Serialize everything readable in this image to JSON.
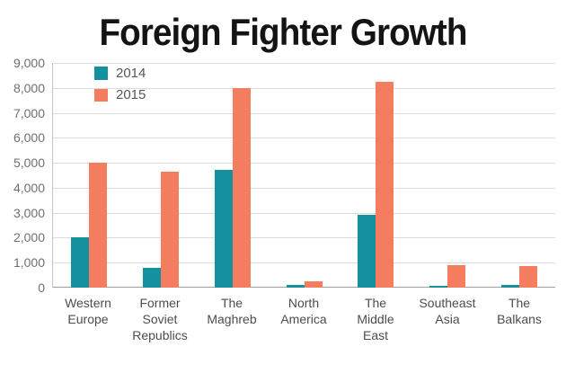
{
  "chart_data": {
    "type": "bar",
    "title": "Foreign Fighter Growth",
    "categories": [
      "Western Europe",
      "Former Soviet Republics",
      "The Maghreb",
      "North America",
      "The Middle East",
      "Southeast Asia",
      "The Balkans"
    ],
    "series": [
      {
        "name": "2014",
        "color": "#14909f",
        "values": [
          2000,
          800,
          4700,
          100,
          2900,
          50,
          100
        ]
      },
      {
        "name": "2015",
        "color": "#f47c5f",
        "values": [
          5000,
          4650,
          8000,
          250,
          8250,
          900,
          875
        ]
      }
    ],
    "xlabel": "",
    "ylabel": "",
    "ylim": [
      0,
      9000
    ],
    "yticks": [
      "9,000",
      "8,000",
      "7,000",
      "6,000",
      "5,000",
      "4,000",
      "3,000",
      "2,000",
      "1,000",
      "0"
    ],
    "ytick_values": [
      9000,
      8000,
      7000,
      6000,
      5000,
      4000,
      3000,
      2000,
      1000,
      0
    ],
    "grid": true,
    "legend_position": "top-left-inside"
  }
}
